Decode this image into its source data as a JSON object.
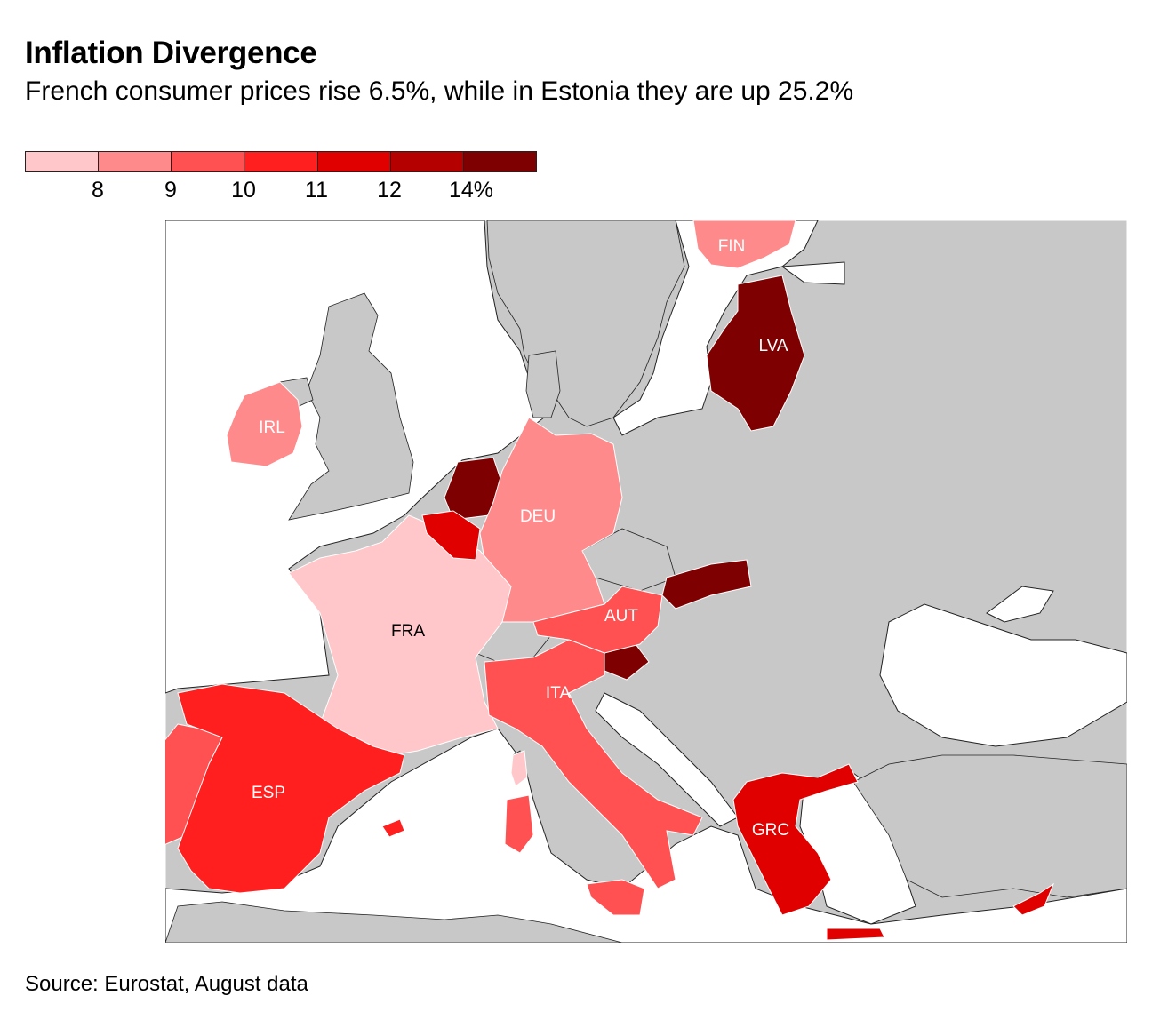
{
  "title": "Inflation Divergence",
  "subtitle": "French consumer prices rise 6.5%, while in Estonia they are up 25.2%",
  "legend": {
    "colors": [
      "#ffc7c9",
      "#ff8a8c",
      "#ff5052",
      "#ff1f1f",
      "#e00000",
      "#b50000",
      "#7e0000"
    ],
    "ticks": [
      "8",
      "9",
      "10",
      "11",
      "12",
      "14%"
    ]
  },
  "map": {
    "background_color": "#c8c8c8",
    "sea_color": "#ffffff",
    "countries": [
      {
        "code": "FIN",
        "label": "FIN",
        "color": "#ff8a8c",
        "label_color": "#ffffff"
      },
      {
        "code": "LVA",
        "label": "LVA",
        "color": "#7e0000",
        "label_color": "#ffffff"
      },
      {
        "code": "IRL",
        "label": "IRL",
        "color": "#ff8a8c",
        "label_color": "#ffffff"
      },
      {
        "code": "DEU",
        "label": "DEU",
        "color": "#ff8a8c",
        "label_color": "#ffffff"
      },
      {
        "code": "FRA",
        "label": "FRA",
        "color": "#ffc7c9",
        "label_color": "#000000"
      },
      {
        "code": "AUT",
        "label": "AUT",
        "color": "#ff5052",
        "label_color": "#ffffff"
      },
      {
        "code": "ITA",
        "label": "ITA",
        "color": "#ff5052",
        "label_color": "#ffffff"
      },
      {
        "code": "ESP",
        "label": "ESP",
        "color": "#ff1f1f",
        "label_color": "#ffffff"
      },
      {
        "code": "GRC",
        "label": "GRC",
        "color": "#e00000",
        "label_color": "#ffffff"
      }
    ]
  },
  "source": "Source: Eurostat, August data"
}
